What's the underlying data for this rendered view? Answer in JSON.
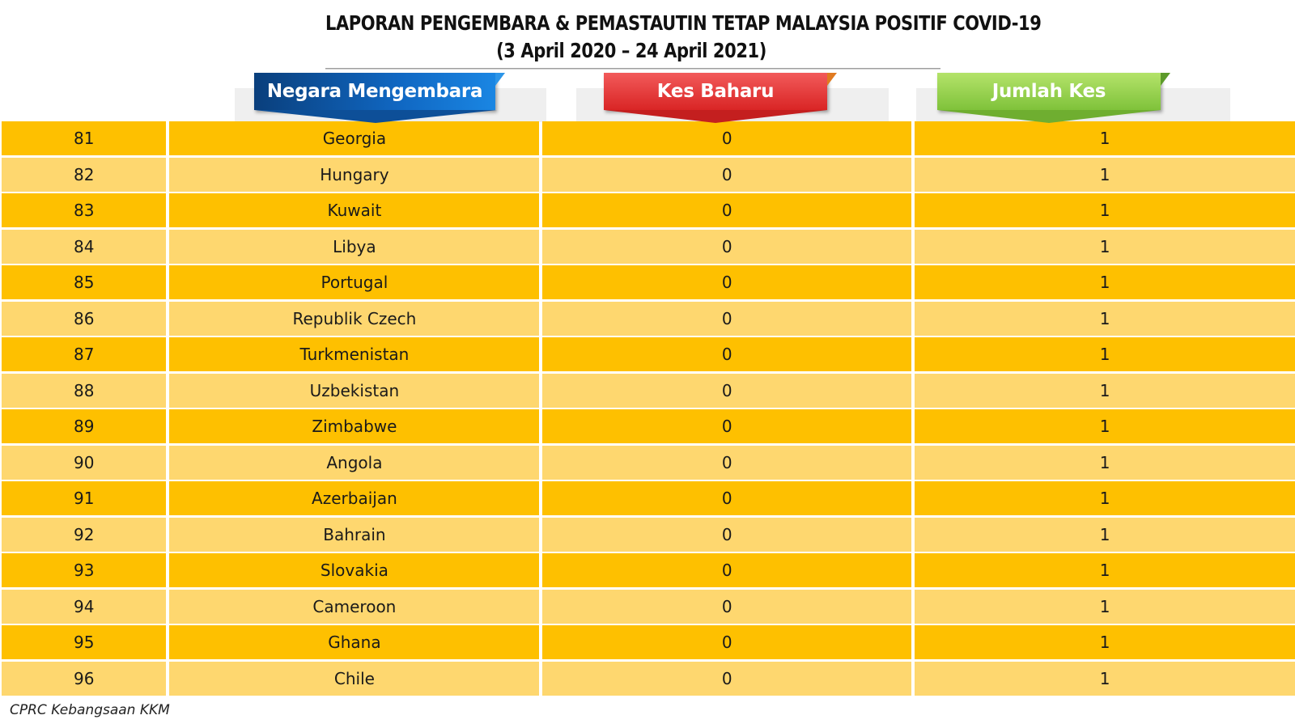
{
  "title": {
    "line1": "LAPORAN PENGEMBARA & PEMASTAUTIN TETAP MALAYSIA POSITIF COVID-19",
    "line2": "(3 April 2020 – 24 April  2021)"
  },
  "headers": {
    "country": "Negara Mengembara",
    "new_cases": "Kes Baharu",
    "total_cases": "Jumlah Kes"
  },
  "colors": {
    "row_primary": "#fec000",
    "row_secondary": "#fed76f",
    "header_blue": "#1067c2",
    "header_red": "#d92525",
    "header_green": "#7fc23a"
  },
  "rows": [
    {
      "no": "81",
      "country": "Georgia",
      "new": "0",
      "total": "1"
    },
    {
      "no": "82",
      "country": "Hungary",
      "new": "0",
      "total": "1"
    },
    {
      "no": "83",
      "country": "Kuwait",
      "new": "0",
      "total": "1"
    },
    {
      "no": "84",
      "country": "Libya",
      "new": "0",
      "total": "1"
    },
    {
      "no": "85",
      "country": "Portugal",
      "new": "0",
      "total": "1"
    },
    {
      "no": "86",
      "country": "Republik Czech",
      "new": "0",
      "total": "1"
    },
    {
      "no": "87",
      "country": "Turkmenistan",
      "new": "0",
      "total": "1"
    },
    {
      "no": "88",
      "country": "Uzbekistan",
      "new": "0",
      "total": "1"
    },
    {
      "no": "89",
      "country": "Zimbabwe",
      "new": "0",
      "total": "1"
    },
    {
      "no": "90",
      "country": "Angola",
      "new": "0",
      "total": "1"
    },
    {
      "no": "91",
      "country": "Azerbaijan",
      "new": "0",
      "total": "1"
    },
    {
      "no": "92",
      "country": "Bahrain",
      "new": "0",
      "total": "1"
    },
    {
      "no": "93",
      "country": "Slovakia",
      "new": "0",
      "total": "1"
    },
    {
      "no": "94",
      "country": "Cameroon",
      "new": "0",
      "total": "1"
    },
    {
      "no": "95",
      "country": "Ghana",
      "new": "0",
      "total": "1"
    },
    {
      "no": "96",
      "country": "Chile",
      "new": "0",
      "total": "1"
    }
  ],
  "footer": "CPRC Kebangsaan KKM"
}
